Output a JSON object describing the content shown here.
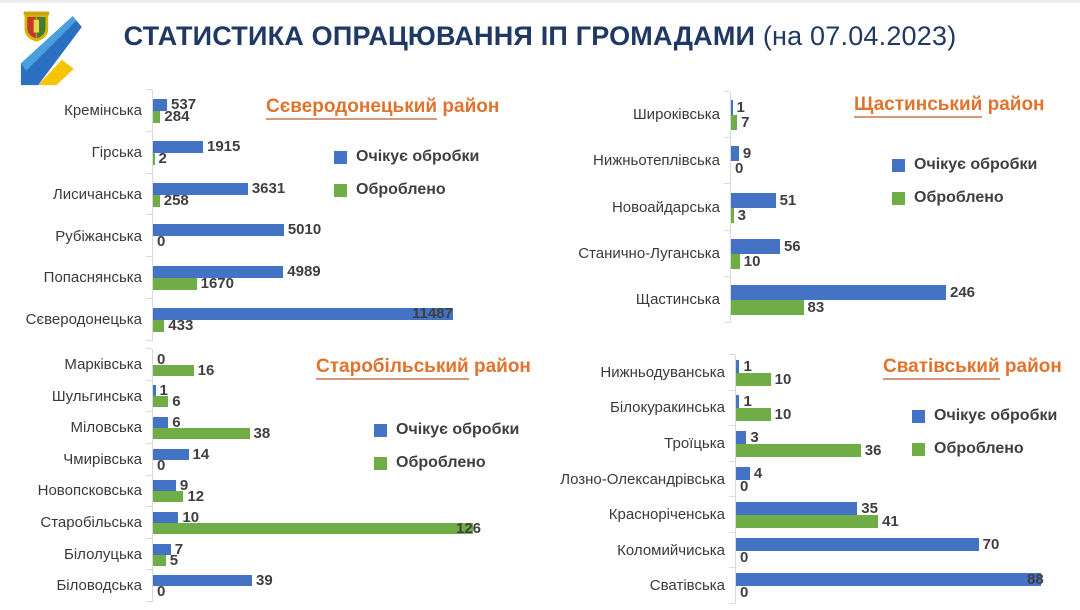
{
  "header": {
    "title_main": "СТАТИСТИКА ОПРАЦЮВАННЯ ІП ГРОМАДАМИ",
    "title_date": " (на 07.04.2023)"
  },
  "colors": {
    "pending": "#4472C4",
    "processed": "#70AD47",
    "page_title": "#203864",
    "chart_title": "#E0742F"
  },
  "chart_data": [
    {
      "type": "bar",
      "orientation": "horizontal",
      "title": "Сєверодонецький район",
      "title_underlined": "Сєверодонецький",
      "title_suffix": " район",
      "legend_position": "right",
      "xmax": 11487,
      "categories": [
        "Кремінська",
        "Гірська",
        "Лисичанська",
        "Рубіжанська",
        "Попаснянська",
        "Сєверодонецька"
      ],
      "series": [
        {
          "name": "Очікує обробки",
          "color": "#4472C4",
          "values": [
            537,
            1915,
            3631,
            5010,
            4989,
            11487
          ]
        },
        {
          "name": "Оброблено",
          "color": "#70AD47",
          "values": [
            284,
            2,
            258,
            0,
            1670,
            433
          ]
        }
      ]
    },
    {
      "type": "bar",
      "orientation": "horizontal",
      "title": "Щастинський район",
      "title_underlined": "Щастинський",
      "title_suffix": " район",
      "legend_position": "right",
      "xmax": 246,
      "categories": [
        "Широківська",
        "Нижньотеплівська",
        "Новоайдарська",
        "Станично-Луганська",
        "Щастинська"
      ],
      "series": [
        {
          "name": "Очікує обробки",
          "color": "#4472C4",
          "values": [
            1,
            9,
            51,
            56,
            246
          ]
        },
        {
          "name": "Оброблено",
          "color": "#70AD47",
          "values": [
            7,
            0,
            3,
            10,
            83
          ]
        }
      ]
    },
    {
      "type": "bar",
      "orientation": "horizontal",
      "title": "Старобільський район",
      "title_underlined": "Старобільський",
      "title_suffix": " район",
      "legend_position": "right",
      "xmax": 126,
      "categories": [
        "Марківська",
        "Шульгинська",
        "Міловська",
        "Чмирівська",
        "Новопсковська",
        "Старобільська",
        "Білолуцька",
        "Біловодська"
      ],
      "series": [
        {
          "name": "Очікує обробки",
          "color": "#4472C4",
          "values": [
            0,
            1,
            6,
            14,
            9,
            10,
            7,
            39
          ]
        },
        {
          "name": "Оброблено",
          "color": "#70AD47",
          "values": [
            16,
            6,
            38,
            0,
            12,
            126,
            5,
            0
          ]
        }
      ]
    },
    {
      "type": "bar",
      "orientation": "horizontal",
      "title": "Сватівський район",
      "title_underlined": "Сватівський",
      "title_suffix": " район",
      "legend_position": "right",
      "xmax": 88,
      "categories": [
        "Нижньодуванська",
        "Білокуракинська",
        "Троїцька",
        "Лозно-Олександрівська",
        "Красноріченська",
        "Коломийчиська",
        "Сватівська"
      ],
      "series": [
        {
          "name": "Очікує обробки",
          "color": "#4472C4",
          "values": [
            1,
            1,
            3,
            4,
            35,
            70,
            88
          ]
        },
        {
          "name": "Оброблено",
          "color": "#70AD47",
          "values": [
            10,
            10,
            36,
            0,
            41,
            0,
            0
          ]
        }
      ]
    }
  ]
}
